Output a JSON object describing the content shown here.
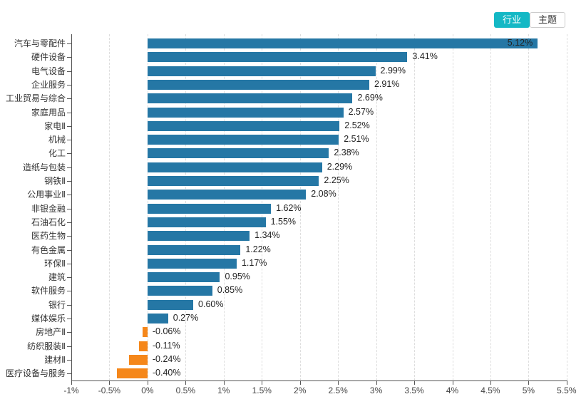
{
  "toolbar": {
    "tabs": [
      {
        "label": "行业",
        "active": true
      },
      {
        "label": "主题",
        "active": false
      }
    ],
    "active_color": "#14b8c5"
  },
  "chart_data": {
    "type": "bar",
    "orientation": "horizontal",
    "categories": [
      "汽车与零配件",
      "硬件设备",
      "电气设备",
      "企业服务",
      "工业贸易与综合",
      "家庭用品",
      "家电Ⅱ",
      "机械",
      "化工",
      "造纸与包装",
      "钢铁Ⅱ",
      "公用事业Ⅱ",
      "非银金融",
      "石油石化",
      "医药生物",
      "有色金属",
      "环保Ⅱ",
      "建筑",
      "软件服务",
      "银行",
      "媒体娱乐",
      "房地产Ⅱ",
      "纺织服装Ⅱ",
      "建材Ⅱ",
      "医疗设备与服务"
    ],
    "values": [
      5.12,
      3.41,
      2.99,
      2.91,
      2.69,
      2.57,
      2.52,
      2.51,
      2.38,
      2.29,
      2.25,
      2.08,
      1.62,
      1.55,
      1.34,
      1.22,
      1.17,
      0.95,
      0.85,
      0.6,
      0.27,
      -0.06,
      -0.11,
      -0.24,
      -0.4
    ],
    "value_labels": [
      "5.12%",
      "3.41%",
      "2.99%",
      "2.91%",
      "2.69%",
      "2.57%",
      "2.52%",
      "2.51%",
      "2.38%",
      "2.29%",
      "2.25%",
      "2.08%",
      "1.62%",
      "1.55%",
      "1.34%",
      "1.22%",
      "1.17%",
      "0.95%",
      "0.85%",
      "0.60%",
      "0.27%",
      "-0.06%",
      "-0.11%",
      "-0.24%",
      "-0.40%"
    ],
    "x_tick_labels": [
      "-1%",
      "-0.5%",
      "0%",
      "0.5%",
      "1%",
      "1.5%",
      "2%",
      "2.5%",
      "3%",
      "3.5%",
      "4%",
      "4.5%",
      "5%",
      "5.5%"
    ],
    "xlim": [
      -1,
      5.5
    ],
    "positive_color": "#2577a5",
    "negative_color": "#f5871a",
    "grid": "vertical-dashed",
    "legend": "none"
  }
}
